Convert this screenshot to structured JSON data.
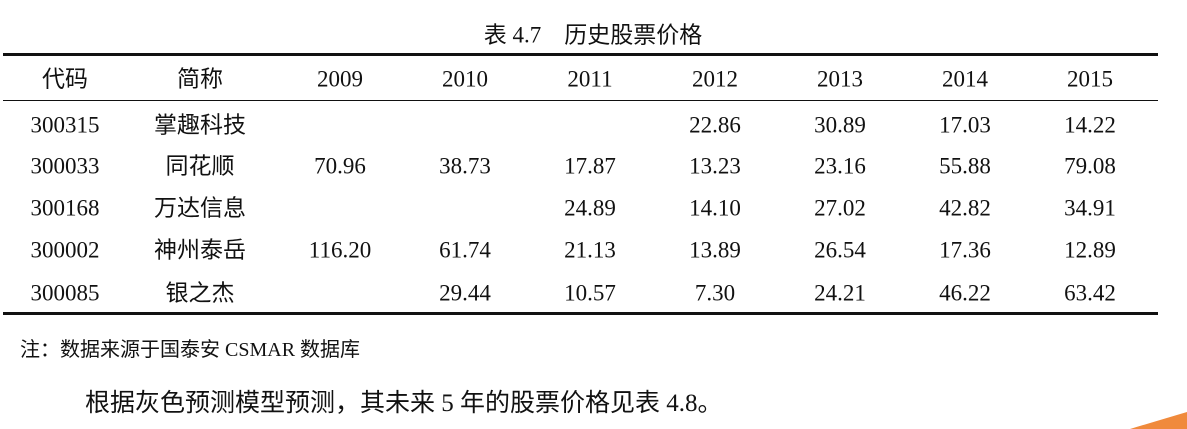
{
  "table": {
    "caption": "表 4.7　历史股票价格",
    "header": [
      "代码",
      "简称",
      "2009",
      "2010",
      "2011",
      "2012",
      "2013",
      "2014",
      "2015"
    ],
    "rows": [
      [
        "300315",
        "掌趣科技",
        null,
        null,
        null,
        "22.86",
        "30.89",
        "17.03",
        "14.22"
      ],
      [
        "300033",
        "同花顺",
        "70.96",
        "38.73",
        "17.87",
        "13.23",
        "23.16",
        "55.88",
        "79.08"
      ],
      [
        "300168",
        "万达信息",
        null,
        null,
        "24.89",
        "14.10",
        "27.02",
        "42.82",
        "34.91"
      ],
      [
        "300002",
        "神州泰岳",
        "116.20",
        "61.74",
        "21.13",
        "13.89",
        "26.54",
        "17.36",
        "12.89"
      ],
      [
        "300085",
        "银之杰",
        null,
        "29.44",
        "10.57",
        "7.30",
        "24.21",
        "46.22",
        "63.42"
      ]
    ],
    "note": "注：数据来源于国泰安 CSMAR 数据库"
  },
  "paragraph": "根据灰色预测模型预测，其未来 5 年的股票价格见表 4.8。"
}
